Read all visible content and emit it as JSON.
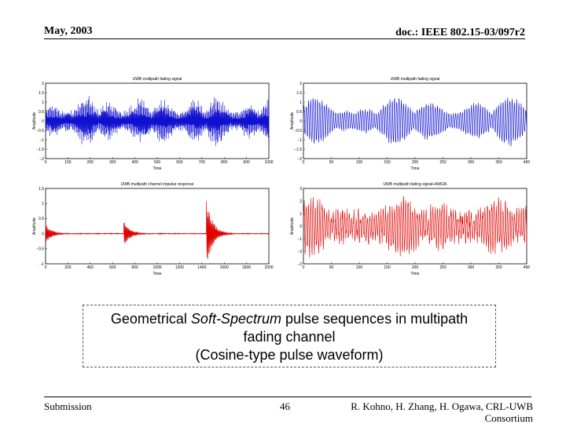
{
  "header": {
    "date": "May, 2003",
    "doc": "doc.: IEEE 802.15-03/097r2"
  },
  "caption": {
    "line1_pre": "Geometrical ",
    "line1_italic": "Soft-Spectrum",
    "line1_post": " pulse sequences in multipath",
    "line2": "fading channel",
    "line3": "(Cosine-type pulse waveform)"
  },
  "footer": {
    "left": "Submission",
    "page": "46",
    "right_line1": "R. Kohno, H. Zhang, H. Ogawa, CRL-UWB",
    "right_line2": "Consortium"
  },
  "chart_data": [
    {
      "id": "tl",
      "type": "line",
      "title": "UWB multipath fading  signal",
      "xlabel": "Time",
      "ylabel": "Amplitude",
      "xlim": [
        0,
        1000
      ],
      "ylim": [
        -2,
        2
      ],
      "xticks": [
        0,
        100,
        200,
        300,
        400,
        500,
        600,
        700,
        800,
        900,
        1000
      ],
      "yticks": [
        -2,
        -1.5,
        -1,
        -0.5,
        0,
        0.5,
        1,
        1.5,
        2
      ],
      "color": "#1010d0",
      "series": [
        {
          "kind": "dense_fading",
          "x_range": [
            0,
            1000
          ],
          "peak": 1.5
        }
      ]
    },
    {
      "id": "tr",
      "type": "line",
      "title": "UWB multipath fading  signal",
      "xlabel": "Time",
      "ylabel": "Amplitude",
      "xlim": [
        0,
        400
      ],
      "ylim": [
        -2,
        2
      ],
      "xticks": [
        0,
        50,
        100,
        150,
        200,
        250,
        300,
        350,
        400
      ],
      "yticks": [
        -2,
        -1.5,
        -1,
        -0.5,
        0,
        0.5,
        1,
        1.5,
        2
      ],
      "color": "#1010d0",
      "series": [
        {
          "kind": "zoomed_fading",
          "x_range": [
            0,
            400
          ],
          "peak": 1.4
        }
      ]
    },
    {
      "id": "bl",
      "type": "line",
      "title": "UWB multipath channel impulse response",
      "xlabel": "Time",
      "ylabel": "Amplitude",
      "xlim": [
        0,
        2000
      ],
      "ylim": [
        -1,
        1.5
      ],
      "xticks": [
        0,
        200,
        400,
        600,
        800,
        1000,
        1200,
        1400,
        1600,
        1800,
        2000
      ],
      "yticks": [
        -1,
        -0.5,
        0,
        0.5,
        1,
        1.5
      ],
      "color": "#e00000",
      "series": [
        {
          "kind": "impulse_clusters",
          "bursts": [
            {
              "t": 0,
              "amp": 0.35
            },
            {
              "t": 700,
              "amp": 0.45
            },
            {
              "t": 1440,
              "amp": 1.25
            }
          ]
        }
      ]
    },
    {
      "id": "br",
      "type": "line",
      "title": "UWB multipath fading  signal+AWGN",
      "xlabel": "Time",
      "ylabel": "Amplitude",
      "xlim": [
        0,
        400
      ],
      "ylim": [
        -3,
        3
      ],
      "xticks": [
        0,
        50,
        100,
        150,
        200,
        250,
        300,
        350,
        400
      ],
      "yticks": [
        -3,
        -2,
        -1,
        0,
        1,
        2,
        3
      ],
      "color": "#e00000",
      "series": [
        {
          "kind": "noisy_fading",
          "x_range": [
            0,
            400
          ],
          "peak": 2.0
        }
      ]
    }
  ]
}
